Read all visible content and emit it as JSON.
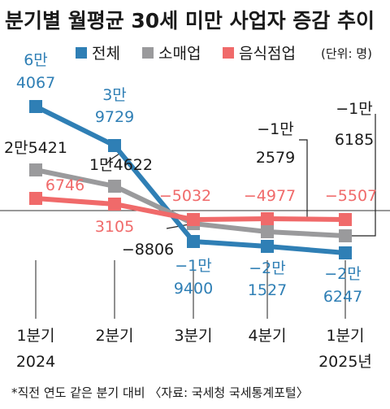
{
  "chart_data": {
    "type": "line",
    "title": "분기별 월평균 30세 미만 사업자 증감 추이",
    "unit": "(단위: 명)",
    "categories": [
      {
        "line1": "1분기",
        "line2": "2024"
      },
      {
        "line1": "2분기",
        "line2": ""
      },
      {
        "line1": "3분기",
        "line2": ""
      },
      {
        "line1": "4분기",
        "line2": ""
      },
      {
        "line1": "1분기",
        "line2": "2025년"
      }
    ],
    "series": [
      {
        "name": "전체",
        "color": "#2f7fb5",
        "values": [
          64067,
          39729,
          -19400,
          -21527,
          -26247
        ],
        "labels": [
          [
            "6만",
            "4067"
          ],
          [
            "3만",
            "9729"
          ],
          [
            "−1만",
            "9400"
          ],
          [
            "−2만",
            "1527"
          ],
          [
            "−2만",
            "6247"
          ]
        ]
      },
      {
        "name": "소매업",
        "color": "#9a9a9c",
        "values": [
          25421,
          14622,
          -8806,
          -12579,
          -16185
        ],
        "labels": [
          [
            "2만5421"
          ],
          [
            "1만4622"
          ],
          [
            "−8806"
          ],
          [
            "−1만",
            "2579"
          ],
          [
            "−1만",
            "6185"
          ]
        ]
      },
      {
        "name": "음식점업",
        "color": "#f06a6a",
        "values": [
          6746,
          3105,
          -5032,
          -4977,
          -5507
        ],
        "labels": [
          [
            "6746"
          ],
          [
            "3105"
          ],
          [
            "−5032"
          ],
          [
            "−4977"
          ],
          [
            "−5507"
          ]
        ]
      }
    ],
    "zero_line": true,
    "legend_position": "top-right",
    "footnote": "*직전 연도 같은 분기 대비 〈자료: 국세청 국세통계포털〉"
  }
}
